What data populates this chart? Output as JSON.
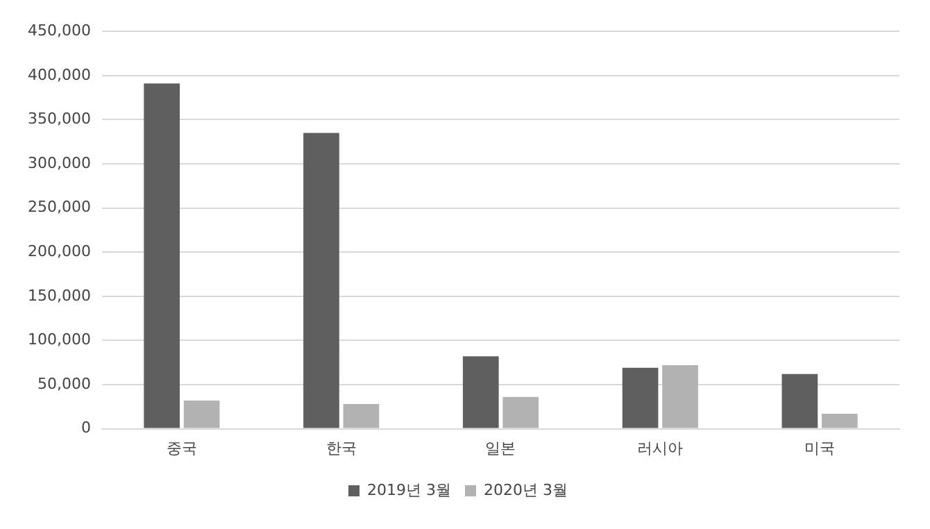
{
  "chart_data": {
    "type": "bar",
    "categories": [
      "중국",
      "한국",
      "일본",
      "러시아",
      "미국"
    ],
    "series": [
      {
        "name": "2019년 3월",
        "color": "#5f5f5f",
        "values": [
          391000,
          335000,
          82000,
          69000,
          62000
        ]
      },
      {
        "name": "2020년 3월",
        "color": "#b2b2b2",
        "values": [
          32000,
          28000,
          36000,
          72000,
          17000
        ]
      }
    ],
    "ylim": [
      0,
      450000
    ],
    "yticks": [
      0,
      {
        "value": 50000,
        "label": "50,000"
      },
      {
        "value": 100000,
        "label": "100,000"
      },
      {
        "value": 150000,
        "label": "150,000"
      },
      {
        "value": 200000,
        "label": "200,000"
      },
      {
        "value": 250000,
        "label": "250,000"
      },
      {
        "value": 300000,
        "label": "300,000"
      },
      {
        "value": 350000,
        "label": "350,000"
      },
      {
        "value": 400000,
        "label": "400,000"
      },
      {
        "value": 450000,
        "label": "450,000"
      }
    ],
    "grid": "y",
    "legend": "bottom"
  }
}
